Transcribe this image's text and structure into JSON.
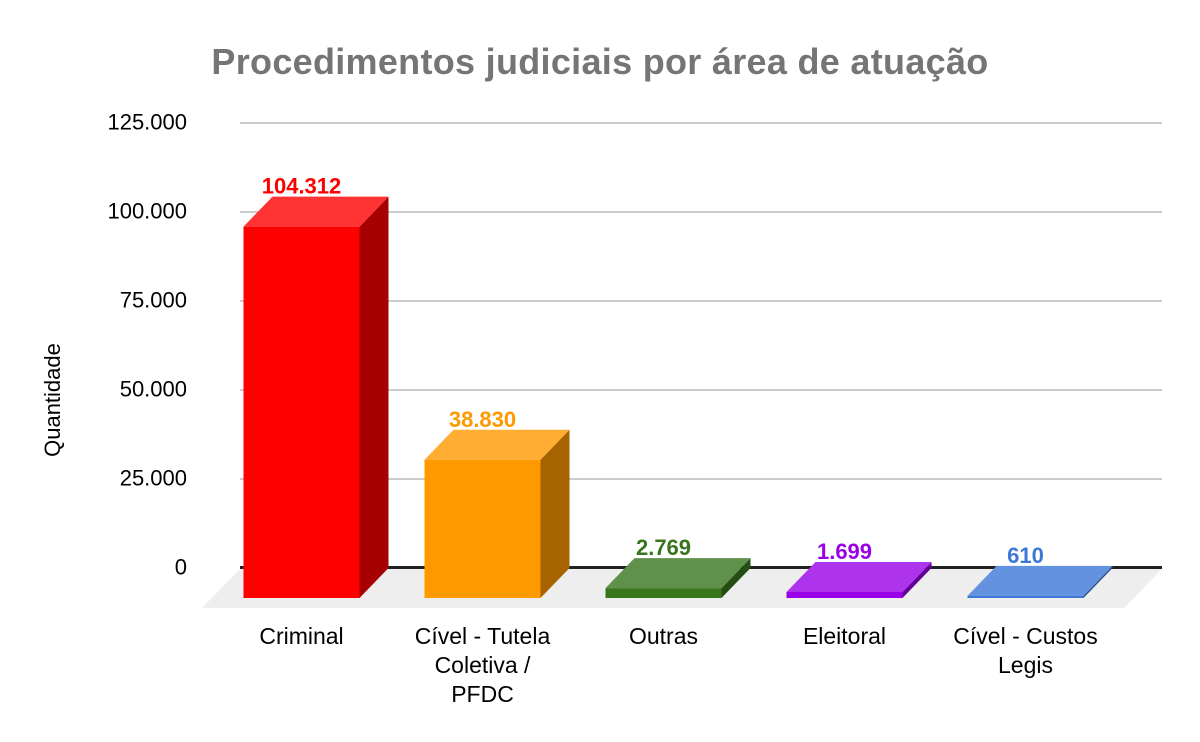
{
  "chart_data": {
    "type": "bar",
    "variant": "3d-column",
    "title": "Procedimentos judiciais por área de atuação",
    "xlabel": "",
    "ylabel": "Quantidade",
    "categories": [
      "Criminal",
      "Cível - Tutela Coletiva / PFDC",
      "Outras",
      "Eleitoral",
      "Cível - Custos Legis"
    ],
    "category_lines": [
      [
        "Criminal"
      ],
      [
        "Cível - Tutela",
        "Coletiva /",
        "PFDC"
      ],
      [
        "Outras"
      ],
      [
        "Eleitoral"
      ],
      [
        "Cível - Custos",
        "Legis"
      ]
    ],
    "values": [
      104312,
      38830,
      2769,
      1699,
      610
    ],
    "value_labels": [
      "104.312",
      "38.830",
      "2.769",
      "1.699",
      "610"
    ],
    "series_colors": [
      {
        "front": "#FF0000",
        "top": "#FF3333",
        "side": "#A60000",
        "label": "#FF0000"
      },
      {
        "front": "#FF9900",
        "top": "#FFAD33",
        "side": "#A66300",
        "label": "#FF9900"
      },
      {
        "front": "#38761D",
        "top": "#5F914A",
        "side": "#244D13",
        "label": "#38761D"
      },
      {
        "front": "#9900E8",
        "top": "#AD33ED",
        "side": "#640097",
        "label": "#9900E8"
      },
      {
        "front": "#3C78D8",
        "top": "#6393E0",
        "side": "#274E8D",
        "label": "#3C78D8"
      }
    ],
    "ylim": [
      0,
      125000
    ],
    "yticks": [
      {
        "value": 0,
        "label": "0"
      },
      {
        "value": 25000,
        "label": "25.000"
      },
      {
        "value": 50000,
        "label": "50.000"
      },
      {
        "value": 75000,
        "label": "75.000"
      },
      {
        "value": 100000,
        "label": "100.000"
      },
      {
        "value": 125000,
        "label": "125.000"
      }
    ],
    "grid": true,
    "legend": "none",
    "colors": {
      "title": "#757575",
      "axis_line": "#212121",
      "gridline": "#CCCCCC",
      "floor": "#EEEEEE",
      "background": "#FFFFFF",
      "tick_text": "#000000",
      "category_text": "#000000"
    }
  }
}
